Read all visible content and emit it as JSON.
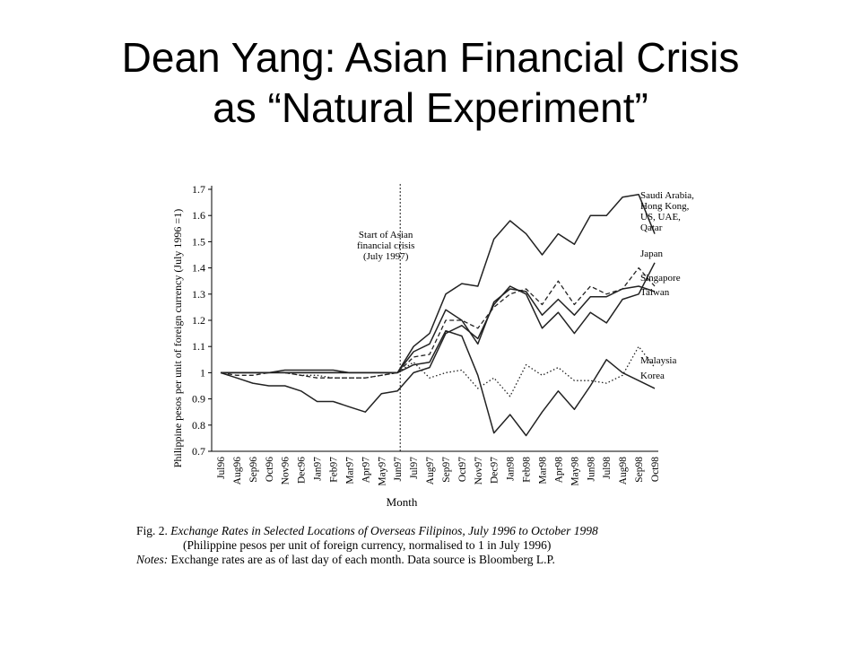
{
  "slide": {
    "title_line1": "Dean Yang:  Asian Financial Crisis",
    "title_line2": "as “Natural Experiment”"
  },
  "caption": {
    "fig_label": "Fig. 2.",
    "fig_title": "Exchange Rates in Selected Locations of Overseas Filipinos, July 1996 to October 1998",
    "subtitle": "(Philippine pesos per unit of foreign currency, normalised to 1 in July 1996)",
    "notes_label": "Notes:",
    "notes_text": "Exchange rates are as of last day of each month. Data source is Bloomberg L.P."
  },
  "chart_data": {
    "type": "line",
    "xlabel": "Month",
    "ylabel": "Philippine pesos per unit of foreign currency (July 1996 =1)",
    "ylim": [
      0.7,
      1.7
    ],
    "yticks": [
      "0.7",
      "0.8",
      "0.9",
      "1",
      "1.1",
      "1.2",
      "1.3",
      "1.4",
      "1.5",
      "1.6",
      "1.7"
    ],
    "categories": [
      "Jul96",
      "Aug96",
      "Sep96",
      "Oct96",
      "Nov96",
      "Dec96",
      "Jan97",
      "Feb97",
      "Mar97",
      "Apr97",
      "May97",
      "Jun97",
      "Jul97",
      "Aug97",
      "Sep97",
      "Oct97",
      "Nov97",
      "Dec97",
      "Jan98",
      "Feb98",
      "Mar98",
      "Apr98",
      "May98",
      "Jun98",
      "Jul98",
      "Aug98",
      "Sep98",
      "Oct98"
    ],
    "tick_labels": [
      "Jul96",
      "Aug96",
      "Sep96",
      "Oct96",
      "Nov96",
      "Dec96",
      "Jan97",
      "Feb97",
      "Mar97",
      "Apr97",
      "May97",
      "Jun97",
      "Jul97",
      "Aug97",
      "Sep97",
      "Oct97",
      "Nov97",
      "Dec97",
      "Jan98",
      "Feb98",
      "Mar98",
      "Apr98",
      "May98",
      "Jun98",
      "Jul98",
      "Aug98",
      "Sep98",
      "Oct98"
    ],
    "annotation": {
      "lines": [
        "Start of Asian",
        "financial crisis",
        "(July 1997)"
      ],
      "at_category": "Jun97"
    },
    "grid": false,
    "series": [
      {
        "name": "Saudi Arabia, Hong Kong, US, UAE, Qatar",
        "label_lines": [
          "Saudi Arabia,",
          "Hong Kong,",
          "US, UAE,",
          "Qatar"
        ],
        "style": "solid",
        "values": [
          1,
          1.0,
          1.0,
          1.0,
          1.0,
          1.0,
          1.0,
          1.0,
          1.0,
          1.0,
          1.0,
          1.0,
          1.1,
          1.15,
          1.3,
          1.34,
          1.33,
          1.51,
          1.58,
          1.53,
          1.45,
          1.53,
          1.49,
          1.6,
          1.6,
          1.67,
          1.68,
          1.53
        ]
      },
      {
        "name": "Japan",
        "label_lines": [
          "Japan"
        ],
        "style": "solid",
        "values": [
          1,
          0.98,
          0.96,
          0.95,
          0.95,
          0.93,
          0.89,
          0.89,
          0.87,
          0.85,
          0.92,
          0.93,
          1.0,
          1.02,
          1.15,
          1.18,
          1.13,
          1.26,
          1.33,
          1.3,
          1.17,
          1.23,
          1.15,
          1.23,
          1.19,
          1.28,
          1.3,
          1.42
        ]
      },
      {
        "name": "Singapore",
        "label_lines": [
          "Singapore"
        ],
        "style": "dashed",
        "values": [
          1,
          0.99,
          0.99,
          1.0,
          1.0,
          0.99,
          0.98,
          0.98,
          0.98,
          0.98,
          0.99,
          1.0,
          1.06,
          1.07,
          1.2,
          1.2,
          1.17,
          1.25,
          1.3,
          1.32,
          1.26,
          1.35,
          1.26,
          1.33,
          1.3,
          1.32,
          1.4,
          1.33
        ]
      },
      {
        "name": "Taiwan",
        "label_lines": [
          "Taiwan"
        ],
        "style": "solid",
        "values": [
          1,
          1.0,
          1.0,
          1.0,
          1.0,
          1.0,
          1.0,
          1.0,
          1.0,
          1.0,
          1.0,
          1.0,
          1.08,
          1.11,
          1.24,
          1.2,
          1.11,
          1.27,
          1.32,
          1.31,
          1.22,
          1.28,
          1.22,
          1.29,
          1.29,
          1.32,
          1.33,
          1.31
        ]
      },
      {
        "name": "Malaysia",
        "label_lines": [
          "Malaysia"
        ],
        "style": "dotted",
        "values": [
          1,
          1.0,
          1.0,
          1.0,
          1.0,
          0.99,
          0.99,
          0.98,
          0.98,
          0.98,
          0.99,
          1.0,
          1.04,
          0.98,
          1.0,
          1.01,
          0.94,
          0.98,
          0.91,
          1.03,
          0.99,
          1.02,
          0.97,
          0.97,
          0.96,
          0.99,
          1.1,
          1.02
        ]
      },
      {
        "name": "Korea",
        "label_lines": [
          "Korea"
        ],
        "style": "solid",
        "values": [
          1,
          1.0,
          1.0,
          1.0,
          1.01,
          1.01,
          1.01,
          1.01,
          1.0,
          1.0,
          1.0,
          1.0,
          1.03,
          1.04,
          1.16,
          1.14,
          0.99,
          0.77,
          0.84,
          0.76,
          0.85,
          0.93,
          0.86,
          0.95,
          1.05,
          1.0,
          0.97,
          0.94
        ]
      }
    ]
  }
}
